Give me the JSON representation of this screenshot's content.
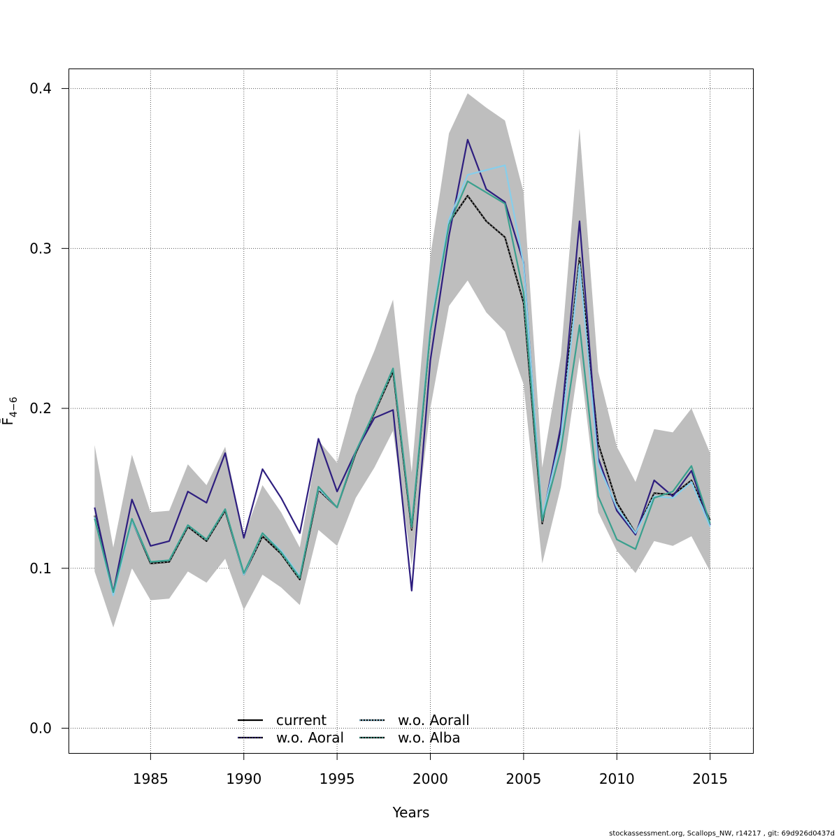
{
  "chart_data": {
    "type": "line",
    "xlabel": "Years",
    "ylabel": "F̄",
    "ylabel_sub": "4−6",
    "xlim": [
      1980.6,
      2017.3
    ],
    "ylim": [
      -0.0155,
      0.4125
    ],
    "xticks": [
      1985,
      1990,
      1995,
      2000,
      2005,
      2010,
      2015
    ],
    "yticks": [
      0.0,
      0.1,
      0.2,
      0.3,
      0.4
    ],
    "ytick_labels": [
      "0.0",
      "0.1",
      "0.2",
      "0.3",
      "0.4"
    ],
    "grid": true,
    "legend_position": "bottom-center",
    "x": [
      1982,
      1983,
      1984,
      1985,
      1986,
      1987,
      1988,
      1989,
      1990,
      1991,
      1992,
      1993,
      1994,
      1995,
      1996,
      1997,
      1998,
      1999,
      2000,
      2001,
      2002,
      2003,
      2004,
      2005,
      2006,
      2007,
      2008,
      2009,
      2010,
      2011,
      2012,
      2013,
      2014,
      2015
    ],
    "band": {
      "color": "#bebebe",
      "lower": [
        0.098,
        0.063,
        0.1,
        0.08,
        0.081,
        0.098,
        0.091,
        0.106,
        0.074,
        0.096,
        0.088,
        0.077,
        0.124,
        0.114,
        0.144,
        0.163,
        0.186,
        0.102,
        0.2,
        0.264,
        0.28,
        0.26,
        0.248,
        0.215,
        0.103,
        0.151,
        0.232,
        0.135,
        0.111,
        0.097,
        0.117,
        0.114,
        0.12,
        0.098
      ],
      "upper": [
        0.177,
        0.113,
        0.171,
        0.135,
        0.136,
        0.165,
        0.152,
        0.176,
        0.12,
        0.152,
        0.135,
        0.113,
        0.18,
        0.166,
        0.208,
        0.236,
        0.268,
        0.16,
        0.295,
        0.372,
        0.397,
        0.388,
        0.38,
        0.335,
        0.163,
        0.233,
        0.375,
        0.223,
        0.176,
        0.154,
        0.187,
        0.185,
        0.2,
        0.172
      ]
    },
    "series": [
      {
        "name": "current",
        "color": "#000000",
        "dash": "",
        "values": [
          0.133,
          0.085,
          0.13,
          0.103,
          0.104,
          0.126,
          0.117,
          0.136,
          0.096,
          0.12,
          0.109,
          0.093,
          0.149,
          0.138,
          0.172,
          0.197,
          0.223,
          0.124,
          0.248,
          0.316,
          0.333,
          0.317,
          0.307,
          0.266,
          0.128,
          0.188,
          0.294,
          0.178,
          0.141,
          0.122,
          0.147,
          0.146,
          0.155,
          0.13
        ]
      },
      {
        "name": "w.o. Aoral",
        "color": "#2e1e7f",
        "dash": "",
        "values": [
          0.138,
          0.085,
          0.143,
          0.114,
          0.117,
          0.148,
          0.141,
          0.172,
          0.119,
          0.162,
          0.144,
          0.122,
          0.181,
          0.148,
          0.173,
          0.194,
          0.199,
          0.086,
          0.23,
          0.308,
          0.368,
          0.337,
          0.329,
          0.291,
          0.13,
          0.189,
          0.317,
          0.169,
          0.136,
          0.121,
          0.155,
          0.145,
          0.161,
          0.127
        ]
      },
      {
        "name": "w.o. Aorall",
        "color": "#87ceeb",
        "dash": "",
        "values": [
          0.132,
          0.083,
          0.13,
          0.104,
          0.105,
          0.127,
          0.118,
          0.137,
          0.096,
          0.122,
          0.111,
          0.095,
          0.15,
          0.138,
          0.173,
          0.198,
          0.225,
          0.126,
          0.25,
          0.318,
          0.346,
          0.349,
          0.352,
          0.29,
          0.132,
          0.182,
          0.29,
          0.165,
          0.138,
          0.122,
          0.145,
          0.144,
          0.154,
          0.126
        ]
      },
      {
        "name": "w.o. Alba",
        "color": "#3aa08e",
        "dash": "",
        "values": [
          0.131,
          0.085,
          0.131,
          0.104,
          0.105,
          0.127,
          0.118,
          0.137,
          0.097,
          0.122,
          0.11,
          0.094,
          0.151,
          0.138,
          0.173,
          0.198,
          0.225,
          0.126,
          0.248,
          0.315,
          0.342,
          0.335,
          0.328,
          0.272,
          0.13,
          0.174,
          0.252,
          0.145,
          0.118,
          0.112,
          0.144,
          0.148,
          0.164,
          0.128
        ]
      }
    ],
    "legend": [
      {
        "label": "current",
        "color": "#000000",
        "dot_color": ""
      },
      {
        "label": "w.o. Aoral",
        "color": "#000000",
        "dot_color": "#2e1e7f"
      },
      {
        "label": "w.o. Aorall",
        "color": "#000000",
        "dot_color": "#87ceeb"
      },
      {
        "label": "w.o. Alba",
        "color": "#000000",
        "dot_color": "#3aa08e"
      }
    ]
  },
  "footer": "stockassessment.org, Scallops_NW, r14217 , git: 69d926d0437d"
}
